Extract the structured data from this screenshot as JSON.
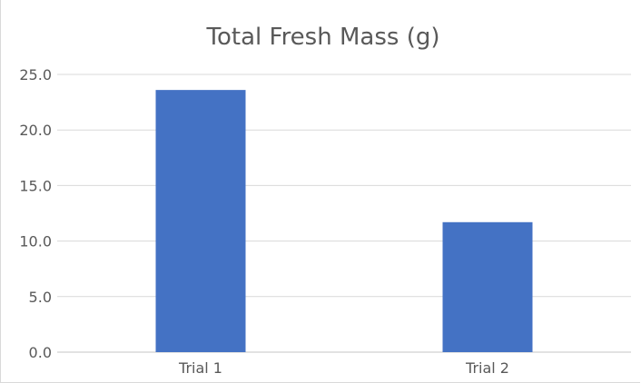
{
  "chart_data": {
    "type": "bar",
    "title": "Total Fresh Mass (g)",
    "xlabel": "",
    "ylabel": "",
    "categories": [
      "Trial 1",
      "Trial 2"
    ],
    "values": [
      23.6,
      11.7
    ],
    "ylim": [
      0,
      25
    ],
    "yticks": [
      "0.0",
      "5.0",
      "10.0",
      "15.0",
      "20.0",
      "25.0"
    ],
    "grid": true,
    "legend": "none",
    "bar_color": "#4472C4",
    "grid_color": "#d9d9d9"
  }
}
